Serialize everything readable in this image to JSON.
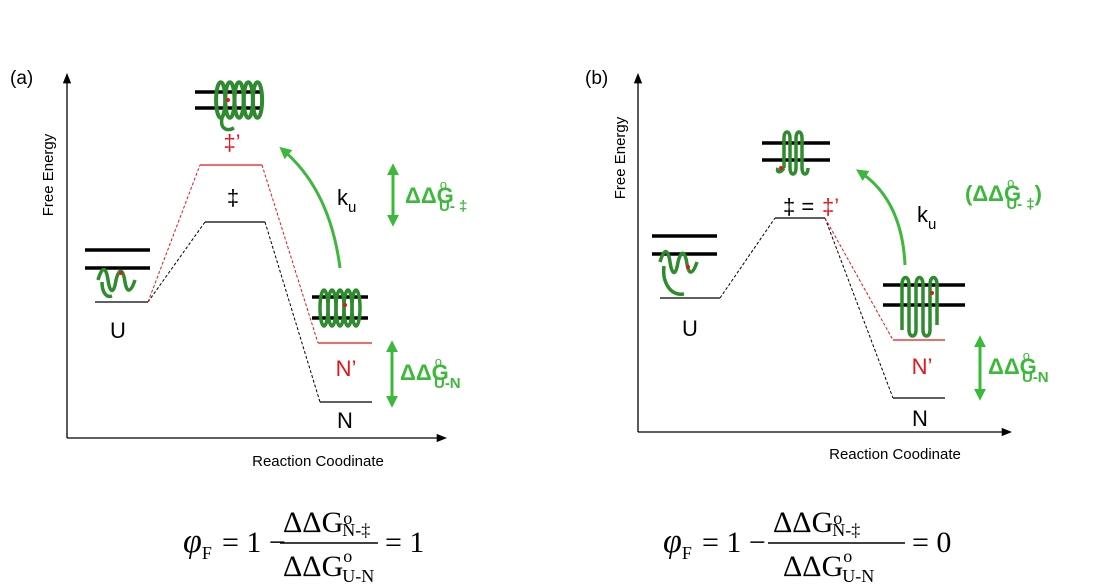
{
  "panels": [
    {
      "label": "(a)",
      "y_axis_label": "Free Energy",
      "x_axis_label": "Reaction Coodinate",
      "unfolded": "U",
      "transition_state": "‡",
      "mutant_transition_state": "‡’",
      "mutant_native": "N’",
      "native": "N",
      "rate": {
        "symbol": "k",
        "subscript": "u"
      },
      "ddg_ts": {
        "symbol": "ΔΔG",
        "superscript": "o",
        "subscript": "U- ‡"
      },
      "ddg_native": {
        "symbol": "ΔΔG",
        "superscript": "o",
        "subscript": "U-N"
      },
      "equation": {
        "phi": "φ",
        "phi_subscript": "F",
        "lhs": "= 1 −",
        "numerator": "ΔΔG",
        "numerator_superscript": "o",
        "numerator_subscript": "N-‡",
        "denominator": "ΔΔG",
        "denominator_superscript": "o",
        "denominator_subscript": "U-N",
        "rhs": "= 1"
      }
    },
    {
      "label": "(b)",
      "y_axis_label": "Free Energy",
      "x_axis_label": "Reaction Coodinate",
      "unfolded": "U",
      "transition_state": "‡ =",
      "mutant_transition_state": "‡’",
      "mutant_native": "N’",
      "native": "N",
      "rate": {
        "symbol": "k",
        "subscript": "u"
      },
      "ddg_ts": {
        "open": "(",
        "symbol": "ΔΔG",
        "superscript": "o",
        "subscript": "U- ‡",
        "close": ")"
      },
      "ddg_native": {
        "symbol": "ΔΔG",
        "superscript": "o",
        "subscript": "U-N"
      },
      "equation": {
        "phi": "φ",
        "phi_subscript": "F",
        "lhs": "= 1 −",
        "numerator": "ΔΔG",
        "numerator_superscript": "o",
        "numerator_subscript": "N-‡",
        "denominator": "ΔΔG",
        "denominator_superscript": "o",
        "denominator_subscript": "U-N",
        "rhs": "= 0"
      }
    }
  ]
}
